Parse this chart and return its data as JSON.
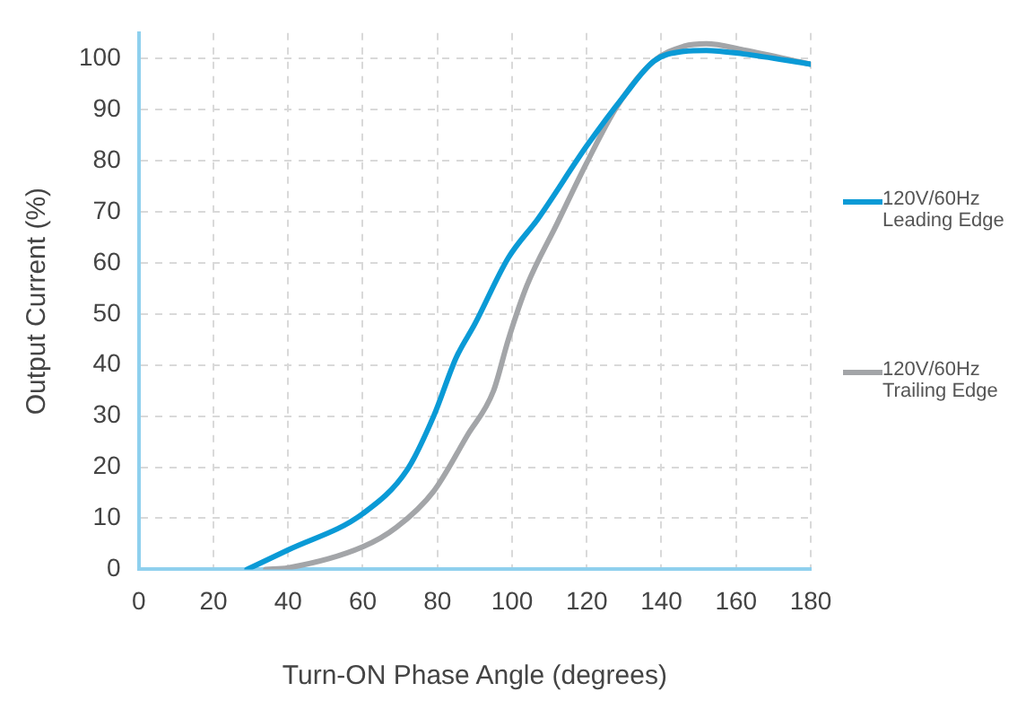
{
  "chart_data": {
    "type": "line",
    "xlabel": "Turn-ON Phase Angle (degrees)",
    "ylabel": "Output Current (%)",
    "xlim": [
      0,
      180
    ],
    "xticks": [
      0,
      20,
      40,
      60,
      80,
      100,
      120,
      140,
      160,
      180
    ],
    "ylim": [
      0,
      105
    ],
    "yticks": [
      0,
      10,
      20,
      30,
      40,
      50,
      60,
      70,
      80,
      90,
      100
    ],
    "grid": true,
    "legend": "right",
    "marker": "none",
    "line_style": "solid",
    "series": [
      {
        "name": "120V/60Hz Leading Edge",
        "color": "#0a9ad6",
        "x": [
          29,
          40,
          60,
          72,
          79,
          85,
          90,
          99,
          107,
          120,
          130,
          138,
          146,
          152,
          162,
          180
        ],
        "values": [
          0,
          3.8,
          10.9,
          19.6,
          30,
          41.4,
          48,
          61,
          68.7,
          82.9,
          92.7,
          99.5,
          101.4,
          101.6,
          100.9,
          98.9
        ]
      },
      {
        "name": "120V/60Hz Trailing Edge",
        "color": "#a3a5a8",
        "x": [
          34,
          40,
          60,
          69,
          79,
          88,
          95,
          99,
          104,
          112,
          120,
          128,
          138,
          146,
          152,
          162,
          180
        ],
        "values": [
          0,
          0.3,
          4.4,
          8.2,
          15.3,
          26.2,
          34.9,
          45,
          55.6,
          67.6,
          79.6,
          90.5,
          99.5,
          102.4,
          102.9,
          101.7,
          98.9
        ]
      }
    ]
  }
}
